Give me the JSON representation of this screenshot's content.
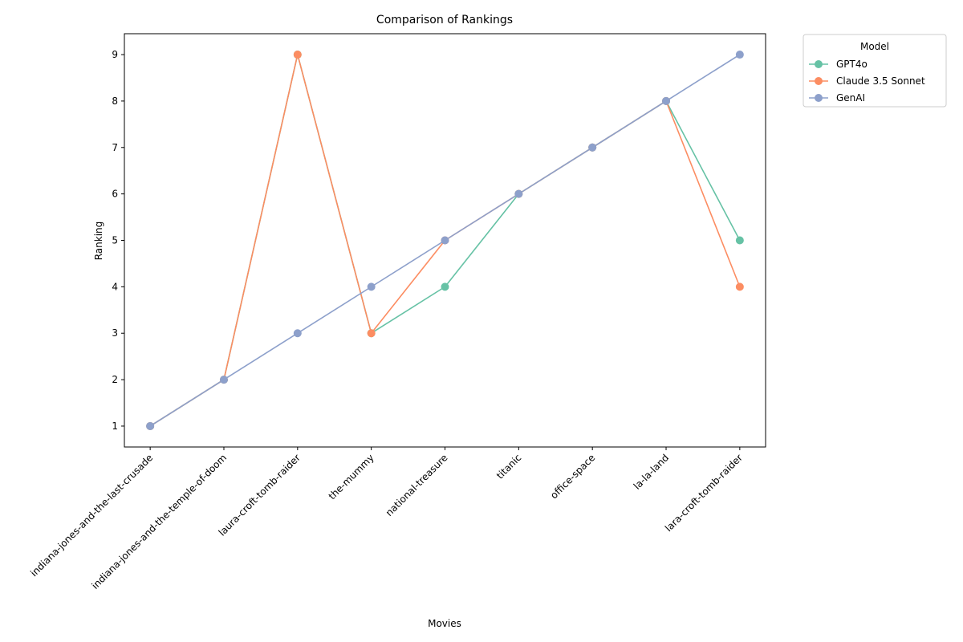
{
  "chart_data": {
    "type": "line",
    "title": "Comparison of Rankings",
    "xlabel": "Movies",
    "ylabel": "Ranking",
    "categories": [
      "indiana-jones-and-the-last-crusade",
      "indiana-jones-and-the-temple-of-doom",
      "laura-croft-tomb-raider",
      "the-mummy",
      "national-treasure",
      "titanic",
      "office-space",
      "la-la-land",
      "lara-croft-tomb-raider"
    ],
    "ylim": [
      0.55,
      9.45
    ],
    "yticks": [
      1,
      2,
      3,
      4,
      5,
      6,
      7,
      8,
      9
    ],
    "legend": {
      "title": "Model",
      "placement": "outside upper right"
    },
    "grid": false,
    "series": [
      {
        "name": "GPT4o",
        "color": "#66c2a5",
        "values": [
          1,
          2,
          9,
          3,
          4,
          6,
          7,
          8,
          5
        ]
      },
      {
        "name": "Claude 3.5 Sonnet",
        "color": "#fc8d62",
        "values": [
          1,
          2,
          9,
          3,
          5,
          6,
          7,
          8,
          4
        ]
      },
      {
        "name": "GenAI",
        "color": "#8da0cb",
        "values": [
          1,
          2,
          3,
          4,
          5,
          6,
          7,
          8,
          9
        ]
      }
    ]
  }
}
